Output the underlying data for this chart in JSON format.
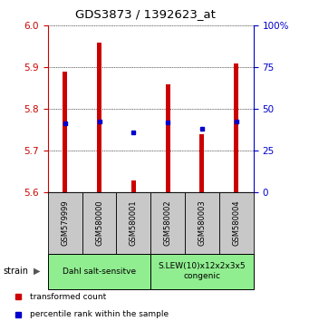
{
  "title": "GDS3873 / 1392623_at",
  "samples": [
    "GSM579999",
    "GSM580000",
    "GSM580001",
    "GSM580002",
    "GSM580003",
    "GSM580004"
  ],
  "bar_tops": [
    5.89,
    5.96,
    5.63,
    5.86,
    5.74,
    5.91
  ],
  "bar_base": 5.6,
  "blue_values": [
    5.765,
    5.77,
    5.745,
    5.768,
    5.752,
    5.77
  ],
  "ylim": [
    5.6,
    6.0
  ],
  "yticks_left": [
    5.6,
    5.7,
    5.8,
    5.9,
    6.0
  ],
  "yticks_right": [
    0,
    25,
    50,
    75,
    100
  ],
  "bar_color": "#CC0000",
  "blue_color": "#0000CC",
  "bg_color": "#C8C8C8",
  "green_color": "#90EE90",
  "legend_red_label": "transformed count",
  "legend_blue_label": "percentile rank within the sample",
  "strain_label": "strain",
  "left_axis_color": "#CC0000",
  "right_axis_color": "#0000CC",
  "group1_label": "Dahl salt-sensitve",
  "group2_label": "S.LEW(10)x12x2x3x5\ncongenic"
}
